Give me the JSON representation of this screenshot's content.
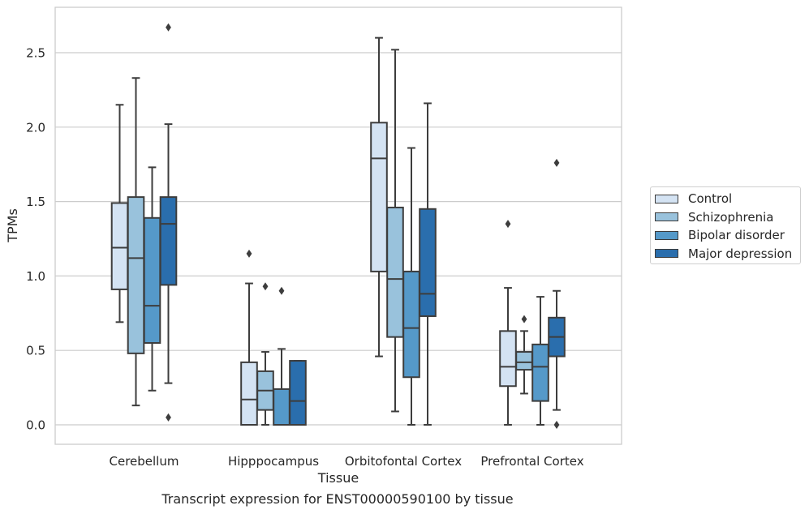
{
  "caption": "Transcript expression for ENST00000590100 by tissue",
  "chart_data": {
    "type": "boxplot",
    "xlabel": "Tissue",
    "ylabel": "TPMs",
    "ylim": [
      -0.13,
      2.82
    ],
    "yticks": [
      0.0,
      0.5,
      1.0,
      1.5,
      2.0,
      2.5
    ],
    "ytick_labels": [
      "0.0",
      "0.5",
      "1.0",
      "1.5",
      "2.0",
      "2.5"
    ],
    "grid": "horizontal",
    "legend_position": "right",
    "categories": [
      "Cerebellum",
      "Hipppocampus",
      "Orbitofontal Cortex",
      "Prefrontal Cortex"
    ],
    "series": [
      {
        "name": "Control",
        "color": "#d4e3f3",
        "boxes": [
          {
            "whislo": 0.69,
            "q1": 0.91,
            "med": 1.19,
            "q3": 1.49,
            "whishi": 2.15,
            "fliers": []
          },
          {
            "whislo": 0.0,
            "q1": 0.0,
            "med": 0.17,
            "q3": 0.42,
            "whishi": 0.95,
            "fliers": [
              1.15
            ]
          },
          {
            "whislo": 0.46,
            "q1": 1.03,
            "med": 1.79,
            "q3": 2.03,
            "whishi": 2.6,
            "fliers": []
          },
          {
            "whislo": 0.0,
            "q1": 0.26,
            "med": 0.39,
            "q3": 0.63,
            "whishi": 0.92,
            "fliers": [
              1.35
            ]
          }
        ]
      },
      {
        "name": "Schizophrenia",
        "color": "#99c2dc",
        "boxes": [
          {
            "whislo": 0.13,
            "q1": 0.48,
            "med": 1.12,
            "q3": 1.53,
            "whishi": 2.33,
            "fliers": []
          },
          {
            "whislo": 0.0,
            "q1": 0.1,
            "med": 0.23,
            "q3": 0.36,
            "whishi": 0.49,
            "fliers": [
              0.93
            ]
          },
          {
            "whislo": 0.09,
            "q1": 0.59,
            "med": 0.98,
            "q3": 1.46,
            "whishi": 2.52,
            "fliers": []
          },
          {
            "whislo": 0.21,
            "q1": 0.37,
            "med": 0.42,
            "q3": 0.49,
            "whishi": 0.63,
            "fliers": [
              0.71
            ]
          }
        ]
      },
      {
        "name": "Bipolar disorder",
        "color": "#5599c9",
        "boxes": [
          {
            "whislo": 0.23,
            "q1": 0.55,
            "med": 0.8,
            "q3": 1.39,
            "whishi": 1.73,
            "fliers": []
          },
          {
            "whislo": 0.0,
            "q1": 0.0,
            "med": 0.0,
            "q3": 0.24,
            "whishi": 0.51,
            "fliers": [
              0.9
            ]
          },
          {
            "whislo": 0.0,
            "q1": 0.32,
            "med": 0.65,
            "q3": 1.03,
            "whishi": 1.86,
            "fliers": []
          },
          {
            "whislo": 0.0,
            "q1": 0.16,
            "med": 0.39,
            "q3": 0.54,
            "whishi": 0.86,
            "fliers": []
          }
        ]
      },
      {
        "name": "Major depression",
        "color": "#2a6ead",
        "boxes": [
          {
            "whislo": 0.28,
            "q1": 0.94,
            "med": 1.35,
            "q3": 1.53,
            "whishi": 2.02,
            "fliers": [
              2.67,
              0.05
            ]
          },
          {
            "whislo": 0.0,
            "q1": 0.0,
            "med": 0.16,
            "q3": 0.43,
            "whishi": 0.43,
            "fliers": []
          },
          {
            "whislo": 0.0,
            "q1": 0.73,
            "med": 0.88,
            "q3": 1.45,
            "whishi": 2.16,
            "fliers": []
          },
          {
            "whislo": 0.1,
            "q1": 0.46,
            "med": 0.59,
            "q3": 0.72,
            "whishi": 0.9,
            "fliers": [
              1.76,
              0.0
            ]
          }
        ]
      }
    ]
  }
}
